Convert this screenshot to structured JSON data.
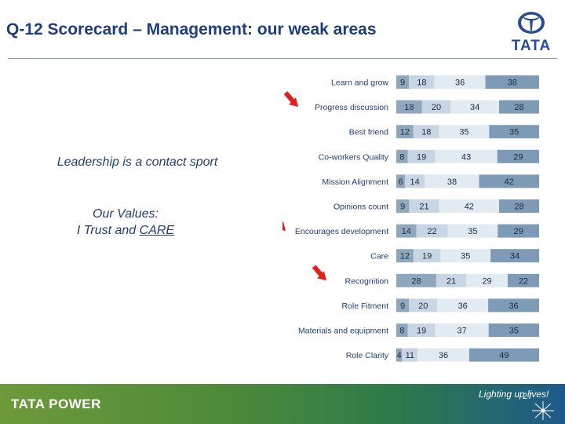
{
  "slide": {
    "title": "Q-12 Scorecard – Management: our weak areas",
    "left_text_1": "Leadership is a contact sport",
    "left_text_2a": "Our Values:",
    "left_text_2b_prefix": "I Trust and ",
    "left_text_2b_underlined": "CARE",
    "page_number": "27"
  },
  "logo": {
    "word": "TATA"
  },
  "footer": {
    "brand": "TATA POWER",
    "tagline": "Lighting up lives!"
  },
  "colors": {
    "seg1": "#8fa7bd",
    "seg2": "#c8d6e3",
    "seg3": "#e3ebf2",
    "seg4": "#7d9bb6",
    "arrow": "#e31e1e"
  },
  "chart_data": {
    "type": "bar",
    "orientation": "horizontal",
    "stacked": true,
    "categories": [
      "Learn and grow",
      "Progress discussion",
      "Best friend",
      "Co-workers Quality",
      "Mission Alignment",
      "Opinions count",
      "Encourages development",
      "Care",
      "Recognition",
      "Role Fitment",
      "Materials and equipment",
      "Role Clarity"
    ],
    "series": [
      {
        "values": [
          9,
          18,
          12,
          8,
          6,
          9,
          14,
          12,
          28,
          9,
          8,
          4
        ]
      },
      {
        "values": [
          18,
          20,
          18,
          19,
          14,
          21,
          22,
          19,
          21,
          20,
          19,
          11
        ]
      },
      {
        "values": [
          36,
          34,
          35,
          43,
          38,
          42,
          35,
          35,
          29,
          36,
          37,
          36
        ]
      },
      {
        "values": [
          38,
          28,
          35,
          29,
          42,
          28,
          29,
          34,
          22,
          36,
          35,
          49
        ]
      }
    ],
    "highlighted_categories": [
      "Progress discussion",
      "Encourages development",
      "Recognition"
    ]
  }
}
